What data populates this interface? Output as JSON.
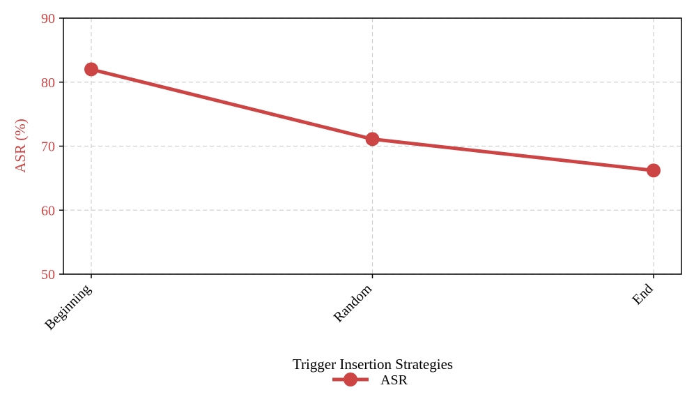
{
  "chart_data": {
    "type": "line",
    "title": "",
    "xlabel": "Trigger Insertion Strategies",
    "ylabel": "ASR (%)",
    "categories": [
      "Beginning",
      "Random",
      "End"
    ],
    "series": [
      {
        "name": "ASR",
        "values": [
          82.0,
          71.1,
          66.2
        ],
        "color": "#cc4444"
      }
    ],
    "ylim": [
      50,
      90
    ],
    "yticks": [
      "50",
      "60",
      "70",
      "80",
      "90"
    ],
    "grid": true,
    "grid_style": "dashed",
    "legend_position": "bottom-center",
    "ylabel_color": "#cc4444",
    "ytick_color": "#cc4444"
  }
}
